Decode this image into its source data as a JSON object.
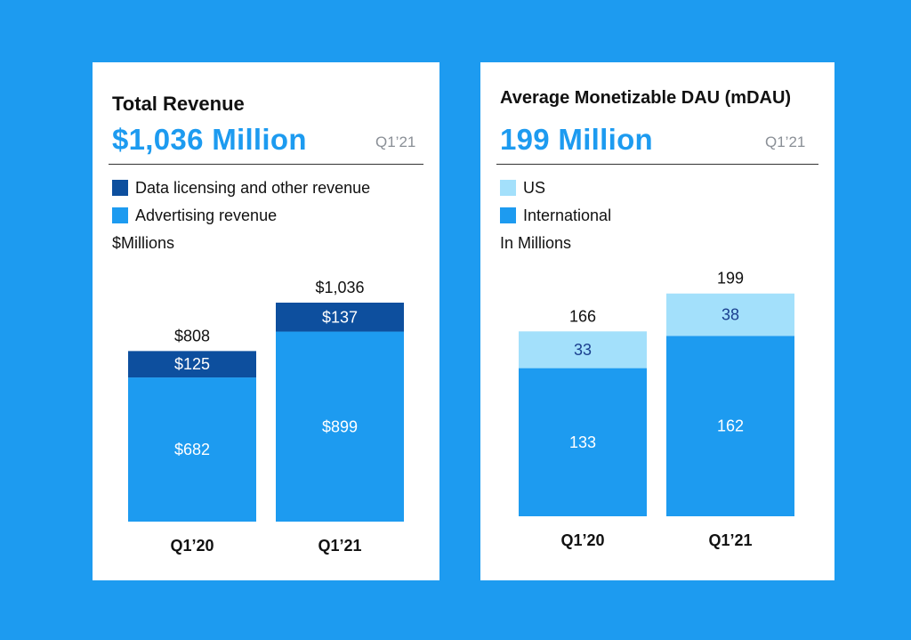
{
  "revenue_card": {
    "title": "Total Revenue",
    "headline": "$1,036 Million",
    "period": "Q1’21",
    "legend": [
      {
        "label": "Data licensing and other revenue",
        "color": "#0d4f9e"
      },
      {
        "label": "Advertising revenue",
        "color": "#1d9bf0"
      }
    ],
    "unit_label": "$Millions"
  },
  "dau_card": {
    "title": "Average Monetizable DAU (mDAU)",
    "headline": "199 Million",
    "period": "Q1’21",
    "legend": [
      {
        "label": "US",
        "color": "#a3e0fb"
      },
      {
        "label": "International",
        "color": "#1d9bf0"
      }
    ],
    "unit_label": "In Millions"
  },
  "chart_data": [
    {
      "type": "bar",
      "stacked": true,
      "title": "Total Revenue",
      "ylabel": "$Millions",
      "categories": [
        "Q1’20",
        "Q1’21"
      ],
      "series": [
        {
          "name": "Advertising revenue",
          "values": [
            682,
            899
          ],
          "labels": [
            "$682",
            "$899"
          ],
          "color": "#1d9bf0",
          "label_color": "#ffffff"
        },
        {
          "name": "Data licensing and other revenue",
          "values": [
            125,
            137
          ],
          "labels": [
            "$125",
            "$137"
          ],
          "color": "#0d4f9e",
          "label_color": "#ffffff"
        }
      ],
      "totals": [
        808,
        1036
      ],
      "total_labels": [
        "$808",
        "$1,036"
      ],
      "ylim": [
        0,
        1036
      ]
    },
    {
      "type": "bar",
      "stacked": true,
      "title": "Average Monetizable DAU (mDAU)",
      "ylabel": "In Millions",
      "categories": [
        "Q1’20",
        "Q1’21"
      ],
      "series": [
        {
          "name": "International",
          "values": [
            133,
            162
          ],
          "labels": [
            "133",
            "162"
          ],
          "color": "#1d9bf0",
          "label_color": "#ffffff"
        },
        {
          "name": "US",
          "values": [
            33,
            38
          ],
          "labels": [
            "33",
            "38"
          ],
          "color": "#a3e0fb",
          "label_color": "#1a3f8f"
        }
      ],
      "totals": [
        166,
        199
      ],
      "total_labels": [
        "166",
        "199"
      ],
      "ylim": [
        0,
        199
      ]
    }
  ]
}
